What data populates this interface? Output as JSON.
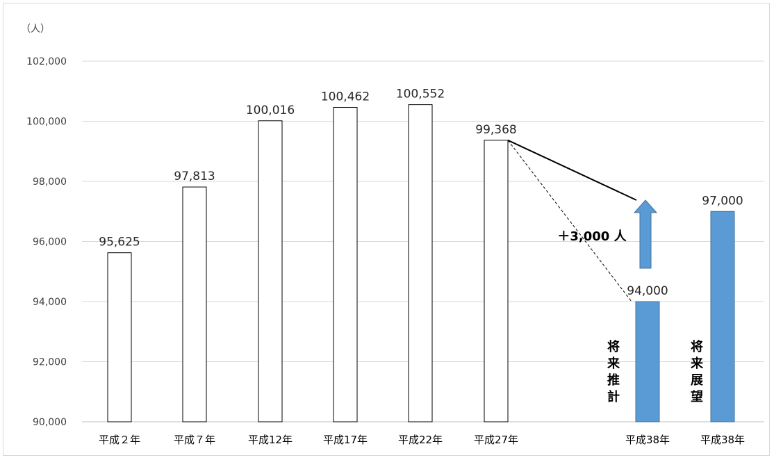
{
  "chart_data": {
    "type": "bar",
    "unit_label": "（人）",
    "categories": [
      "平成２年",
      "平成７年",
      "平成12年",
      "平成17年",
      "平成22年",
      "平成27年",
      "平成38年",
      "平成38年"
    ],
    "values": [
      95625,
      97813,
      100016,
      100462,
      100552,
      99368,
      94000,
      97000
    ],
    "value_labels": [
      "95,625",
      "97,813",
      "100,016",
      "100,462",
      "100,552",
      "99,368",
      "94,000",
      "97,000"
    ],
    "bar_fill": [
      "#ffffff",
      "#ffffff",
      "#ffffff",
      "#ffffff",
      "#ffffff",
      "#ffffff",
      "#5b9bd5",
      "#5b9bd5"
    ],
    "ylim": [
      90000,
      102000
    ],
    "yticks": [
      90000,
      92000,
      94000,
      96000,
      98000,
      100000,
      102000
    ],
    "ytick_labels": [
      "90,000",
      "92,000",
      "94,000",
      "96,000",
      "98,000",
      "100,000",
      "102,000"
    ],
    "grid": true,
    "annotations": {
      "vertical_labels": [
        "将来推計",
        "将来展望"
      ],
      "increase_label": "＋3,000 人"
    },
    "colors": {
      "highlight": "#5b9bd5",
      "grid": "#d9d9d9",
      "axis_text": "#404040"
    }
  }
}
